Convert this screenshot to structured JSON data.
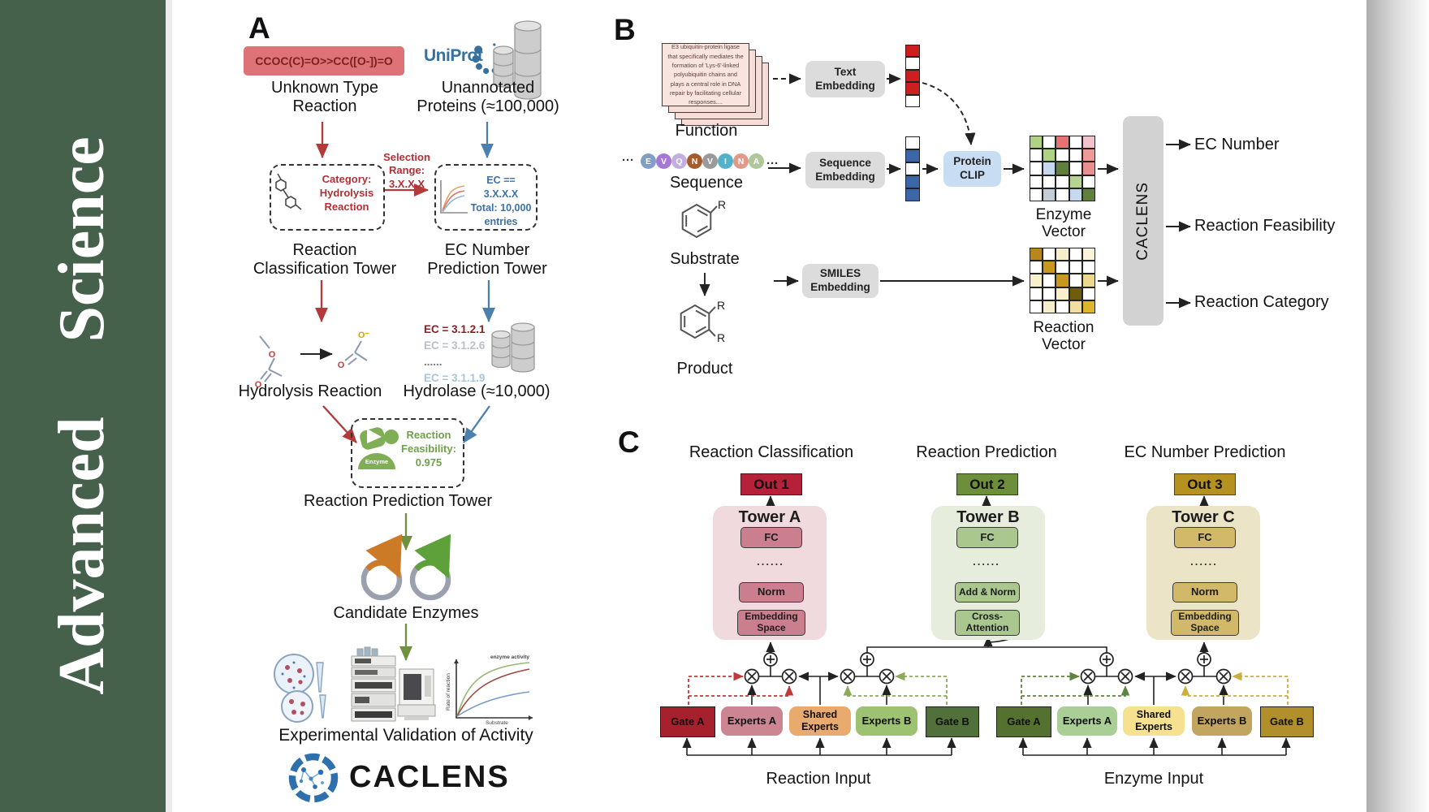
{
  "journal": {
    "name": "Advanced  Science"
  },
  "panel_a": {
    "label": "A",
    "smiles": "CCOC(C)=O>>CC([O-])=O",
    "unknown": [
      "Unknown Type",
      "Reaction"
    ],
    "uniprot": "UniProt",
    "unannotated": [
      "Unannotated",
      "Proteins (≈100,000)"
    ],
    "selection": [
      "Selection",
      "Range:",
      "3.X.X.X"
    ],
    "category": [
      "Category:",
      "Hydrolysis",
      "Reaction"
    ],
    "ec_box": [
      "EC == 3.X.X.X",
      "Total: 10,000",
      "entries"
    ],
    "tower1": [
      "Reaction",
      "Classification Tower"
    ],
    "tower2": [
      "EC Number",
      "Prediction Tower"
    ],
    "ec_list": [
      {
        "text": "EC = 3.1.2.1",
        "color": "#8c1e24"
      },
      {
        "text": "EC = 3.1.2.6",
        "color": "#b9bfc6"
      },
      {
        "text": "......",
        "color": "#777777"
      },
      {
        "text": "EC = 3.1.1.9",
        "color": "#a9c4dd"
      }
    ],
    "hydrolysis_label": "Hydrolysis Reaction",
    "hydrolase_label": "Hydrolase (≈10,000)",
    "enzyme_label": "Enzyme",
    "feasibility": [
      "Reaction",
      "Feasibility:",
      "0.975"
    ],
    "tower3": "Reaction Prediction Tower",
    "candidate": "Candidate Enzymes",
    "plot": {
      "curve_label": "enzyme activity",
      "ylabel": "Rate of reaction",
      "xlabel": "Substrate"
    },
    "validation": "Experimental Validation of Activity",
    "brand": "CACLENS",
    "atoms": {
      "o": "O",
      "o_minus": "O⁻"
    }
  },
  "panel_b": {
    "label": "B",
    "function_card": "E3 ubiquitin-protein ligase that specifically mediates the formation of 'Lys-6'-linked polyubiquitin chains and plays a central role in DNA repair by facilitating cellular responses....",
    "function_label": "Function",
    "ellipsis": "···",
    "chips": [
      {
        "letter": "E",
        "color": "#7f9fc6"
      },
      {
        "letter": "V",
        "color": "#a678d6"
      },
      {
        "letter": "Q",
        "color": "#c3aee1"
      },
      {
        "letter": "N",
        "color": "#a65b2a"
      },
      {
        "letter": "V",
        "color": "#9a9a9a"
      },
      {
        "letter": "I",
        "color": "#53b1c9"
      },
      {
        "letter": "N",
        "color": "#e09a8a"
      },
      {
        "letter": "A",
        "color": "#afc79b"
      }
    ],
    "sequence_label": "Sequence",
    "substrate_label": "Substrate",
    "product_label": "Product",
    "r_label": "R",
    "text_embedding": "Text Embedding",
    "sequence_embedding": "Sequence Embedding",
    "smiles_embedding": "SMILES Embedding",
    "protein_clip": "Protein CLIP",
    "text_vector": [
      "#cc2020",
      "#ffffff",
      "#cc2020",
      "#cc2020",
      "#ffffff"
    ],
    "seq_vector": [
      "#ffffff",
      "#3c66a8",
      "#ffffff",
      "#3c66a8",
      "#3c66a8"
    ],
    "enzyme_matrix": [
      [
        "#aed184",
        "#ffffff",
        "#e57373",
        "#ffffff",
        "#f4c2cb"
      ],
      [
        "#ffffff",
        "#aed184",
        "#ffffff",
        "#ffffff",
        "#ef9a9a"
      ],
      [
        "#ffffff",
        "#c5d8ee",
        "#5f7f3f",
        "#ffffff",
        "#e88f8f"
      ],
      [
        "#ffffff",
        "#ffffff",
        "#ffffff",
        "#b6d394",
        "#ffffff"
      ],
      [
        "#ffffff",
        "#c3cdd8",
        "#ffffff",
        "#c5d8ee",
        "#60803f"
      ]
    ],
    "reaction_matrix": [
      [
        "#b8871a",
        "#ffffff",
        "#f6eecb",
        "#ffffff",
        "#faf4da"
      ],
      [
        "#ffffff",
        "#c9971d",
        "#ffffff",
        "#ffffff",
        "#ffffff"
      ],
      [
        "#f8f0cc",
        "#ffffff",
        "#c9971d",
        "#ffffff",
        "#ecd98e"
      ],
      [
        "#ffffff",
        "#ffffff",
        "#f8f0cc",
        "#6f5c10",
        "#ffffff"
      ],
      [
        "#ffffff",
        "#f6eecb",
        "#ffffff",
        "#f0dfa0",
        "#dcb72e"
      ]
    ],
    "enzyme_vector_label": "Enzyme Vector",
    "reaction_vector_label": "Reaction Vector",
    "caclens_bar": "CACLENS",
    "outputs": [
      "EC Number",
      "Reaction Feasibility",
      "Reaction Category"
    ]
  },
  "panel_c": {
    "label": "C",
    "dots": "......",
    "columns": [
      {
        "header": "Reaction Classification",
        "out": "Out 1",
        "out_bg": "#b52138",
        "tower": "Tower A",
        "tower_bg": "#f1dade",
        "box_bg": "#ca7e8e",
        "fc": "FC",
        "mid": "Norm",
        "bottom": "Embedding Space"
      },
      {
        "header": "Reaction Prediction",
        "out": "Out 2",
        "out_bg": "#6d8f3c",
        "tower": "Tower B",
        "tower_bg": "#e6eddd",
        "box_bg": "#a9c78f",
        "fc": "FC",
        "mid": "Add & Norm",
        "bottom": "Cross-Attention"
      },
      {
        "header": "EC Number Prediction",
        "out": "Out 3",
        "out_bg": "#b5921f",
        "tower": "Tower C",
        "tower_bg": "#ece4c6",
        "box_bg": "#d2b96a",
        "fc": "FC",
        "mid": "Norm",
        "bottom": "Embedding Space"
      }
    ],
    "moe_left": {
      "input": "Reaction Input",
      "boxes": [
        {
          "label": "Gate A",
          "bg": "#a7202e"
        },
        {
          "label": "Experts A",
          "bg": "#cb8593"
        },
        {
          "label": "Shared Experts",
          "bg": "#e9aa6e"
        },
        {
          "label": "Experts B",
          "bg": "#9dc271"
        },
        {
          "label": "Gate B",
          "bg": "#52703a"
        }
      ]
    },
    "moe_right": {
      "input": "Enzyme Input",
      "boxes": [
        {
          "label": "Gate A",
          "bg": "#55712f"
        },
        {
          "label": "Experts A",
          "bg": "#a9cf96"
        },
        {
          "label": "Shared Experts",
          "bg": "#f6e18f"
        },
        {
          "label": "Experts B",
          "bg": "#c2a55f"
        },
        {
          "label": "Gate B",
          "bg": "#b1902b"
        }
      ]
    }
  }
}
